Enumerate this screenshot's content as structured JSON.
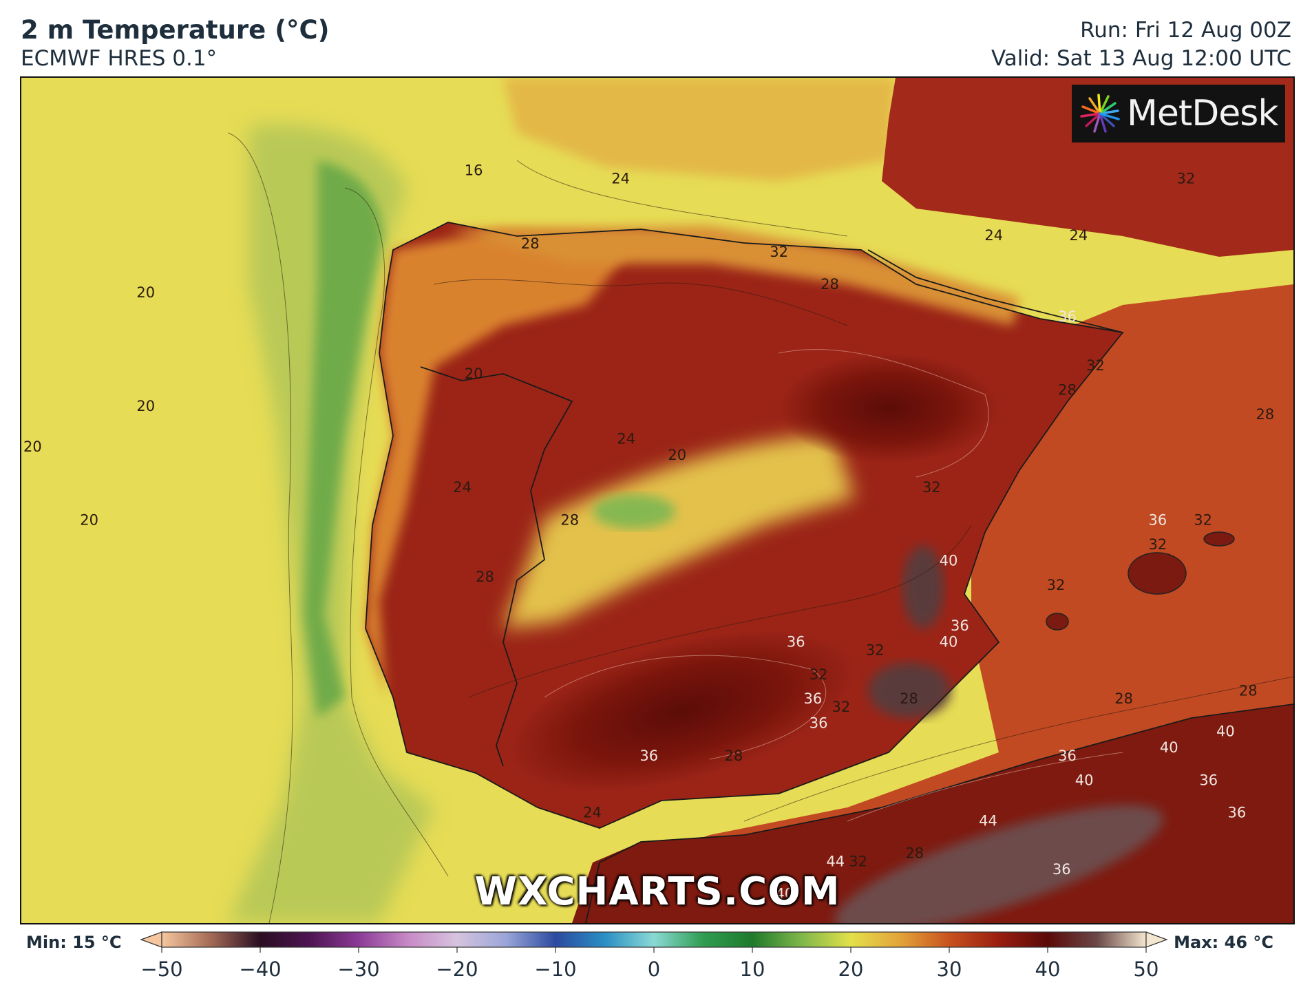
{
  "header": {
    "title": "2 m Temperature (°C)",
    "subtitle": "ECMWF HRES 0.1°",
    "run": "Run: Fri 12 Aug 00Z",
    "valid": "Valid: Sat 13 Aug 12:00 UTC"
  },
  "logo": {
    "text": "MetDesk",
    "icon": "metdesk-burst-icon"
  },
  "watermark": "WXCHARTS.COM",
  "colorbar": {
    "min_label": "Min: 15 °C",
    "max_label": "Max: 46 °C",
    "ticks": [
      "−50",
      "−40",
      "−30",
      "−20",
      "−10",
      "0",
      "10",
      "20",
      "30",
      "40",
      "50"
    ],
    "range": [
      -50,
      50
    ],
    "stops": [
      {
        "v": -50,
        "c": "#f6c79f"
      },
      {
        "v": -45,
        "c": "#a36a56"
      },
      {
        "v": -40,
        "c": "#2a0e22"
      },
      {
        "v": -35,
        "c": "#4e1452"
      },
      {
        "v": -30,
        "c": "#8c3a96"
      },
      {
        "v": -25,
        "c": "#c78ac6"
      },
      {
        "v": -20,
        "c": "#d6c3df"
      },
      {
        "v": -15,
        "c": "#9aa5d8"
      },
      {
        "v": -10,
        "c": "#2c4aa0"
      },
      {
        "v": -5,
        "c": "#2a8fc4"
      },
      {
        "v": 0,
        "c": "#8ad9d4"
      },
      {
        "v": 5,
        "c": "#2f9d52"
      },
      {
        "v": 10,
        "c": "#1f7a2c"
      },
      {
        "v": 15,
        "c": "#7fb74a"
      },
      {
        "v": 20,
        "c": "#e3e04a"
      },
      {
        "v": 25,
        "c": "#e3a33a"
      },
      {
        "v": 30,
        "c": "#c8521e"
      },
      {
        "v": 35,
        "c": "#9a1e10"
      },
      {
        "v": 40,
        "c": "#5a0a08"
      },
      {
        "v": 45,
        "c": "#6b4848"
      },
      {
        "v": 50,
        "c": "#f4e7cf"
      }
    ]
  },
  "map_labels": [
    {
      "text": "16",
      "x": -9.0,
      "y": 43.4
    },
    {
      "text": "24",
      "x": -6.4,
      "y": 43.3
    },
    {
      "text": "28",
      "x": -8.0,
      "y": 42.5
    },
    {
      "text": "20",
      "x": -14.8,
      "y": 41.9
    },
    {
      "text": "32",
      "x": -3.6,
      "y": 42.4
    },
    {
      "text": "28",
      "x": -2.7,
      "y": 42.0
    },
    {
      "text": "24",
      "x": 0.2,
      "y": 42.6
    },
    {
      "text": "24",
      "x": 1.7,
      "y": 42.6
    },
    {
      "text": "32",
      "x": 3.6,
      "y": 43.3
    },
    {
      "text": "36",
      "x": 1.5,
      "y": 41.6
    },
    {
      "text": "32",
      "x": 2.0,
      "y": 41.0
    },
    {
      "text": "28",
      "x": 1.5,
      "y": 40.7
    },
    {
      "text": "28",
      "x": 5.0,
      "y": 40.4
    },
    {
      "text": "20",
      "x": -9.0,
      "y": 40.9
    },
    {
      "text": "20",
      "x": -14.8,
      "y": 40.5
    },
    {
      "text": "24",
      "x": -6.3,
      "y": 40.1
    },
    {
      "text": "20",
      "x": -5.4,
      "y": 39.9
    },
    {
      "text": "24",
      "x": -9.2,
      "y": 39.5
    },
    {
      "text": "28",
      "x": -7.3,
      "y": 39.1
    },
    {
      "text": "20",
      "x": -15.8,
      "y": 39.1
    },
    {
      "text": "32",
      "x": -0.9,
      "y": 39.5
    },
    {
      "text": "32",
      "x": 3.9,
      "y": 39.1
    },
    {
      "text": "36",
      "x": 3.1,
      "y": 39.1
    },
    {
      "text": "32",
      "x": 3.1,
      "y": 38.8
    },
    {
      "text": "40",
      "x": -0.6,
      "y": 38.6
    },
    {
      "text": "28",
      "x": -8.8,
      "y": 38.4
    },
    {
      "text": "32",
      "x": 1.3,
      "y": 38.3
    },
    {
      "text": "36",
      "x": -0.4,
      "y": 37.8
    },
    {
      "text": "40",
      "x": -0.6,
      "y": 37.6
    },
    {
      "text": "36",
      "x": -3.3,
      "y": 37.6
    },
    {
      "text": "32",
      "x": -1.9,
      "y": 37.5
    },
    {
      "text": "32",
      "x": -2.9,
      "y": 37.2
    },
    {
      "text": "36",
      "x": -3.0,
      "y": 36.9
    },
    {
      "text": "28",
      "x": -1.3,
      "y": 36.9
    },
    {
      "text": "28",
      "x": 2.5,
      "y": 36.9
    },
    {
      "text": "28",
      "x": 4.7,
      "y": 37.0
    },
    {
      "text": "32",
      "x": -2.5,
      "y": 36.8
    },
    {
      "text": "36",
      "x": -2.9,
      "y": 36.6
    },
    {
      "text": "40",
      "x": 4.3,
      "y": 36.5
    },
    {
      "text": "40",
      "x": 3.3,
      "y": 36.3
    },
    {
      "text": "36",
      "x": 1.5,
      "y": 36.2
    },
    {
      "text": "36",
      "x": -5.9,
      "y": 36.2
    },
    {
      "text": "28",
      "x": -4.4,
      "y": 36.2
    },
    {
      "text": "36",
      "x": 4.0,
      "y": 35.9
    },
    {
      "text": "40",
      "x": 1.8,
      "y": 35.9
    },
    {
      "text": "24",
      "x": -6.9,
      "y": 35.5
    },
    {
      "text": "44",
      "x": 0.1,
      "y": 35.4
    },
    {
      "text": "36",
      "x": 4.5,
      "y": 35.5
    },
    {
      "text": "28",
      "x": -1.2,
      "y": 35.0
    },
    {
      "text": "44",
      "x": -2.6,
      "y": 34.9
    },
    {
      "text": "32",
      "x": -2.2,
      "y": 34.9
    },
    {
      "text": "36",
      "x": 1.4,
      "y": 34.8
    },
    {
      "text": "40",
      "x": -3.5,
      "y": 34.5
    },
    {
      "text": "20",
      "x": -16.8,
      "y": 40.0
    }
  ]
}
